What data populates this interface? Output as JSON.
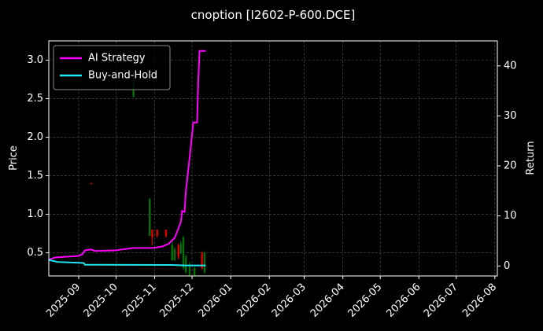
{
  "chart_data": {
    "type": "candlestick",
    "title": "cnoption [I2602-P-600.DCE]",
    "ylabel": "Price",
    "y2label": "Return",
    "xlim": [
      "2025-08-08",
      "2026-08-03"
    ],
    "xticks": [
      "2025-09",
      "2025-10",
      "2025-11",
      "2025-12",
      "2026-01",
      "2026-02",
      "2026-03",
      "2026-04",
      "2026-05",
      "2026-06",
      "2026-07",
      "2026-08"
    ],
    "ylim": [
      0.2,
      3.25
    ],
    "yticks": [
      0.5,
      {
        "value": 1,
        "label": "1.0"
      },
      1.5,
      {
        "value": 2,
        "label": "2.0"
      },
      2.5,
      {
        "value": 3,
        "label": "3.0"
      }
    ],
    "y2lim": [
      -2,
      45
    ],
    "y2ticks": [
      0,
      10,
      20,
      30,
      40
    ],
    "grid": true,
    "legend": "upper left",
    "up_color": "#008000",
    "down_color": "#ff0000",
    "candles": {
      "x": [
        "2025-09-11",
        "2025-10-15",
        "2025-10-28",
        "2025-10-30",
        "2025-11-03",
        "2025-11-10",
        "2025-11-15",
        "2025-11-17",
        "2025-11-20",
        "2025-11-22",
        "2025-11-24",
        "2025-11-26",
        "2025-11-29",
        "2025-12-03",
        "2025-12-09",
        "2025-12-11"
      ],
      "open": [
        1.4,
        2.52,
        0.72,
        0.8,
        0.8,
        0.8,
        0.4,
        0.4,
        0.6,
        0.5,
        0.3,
        0.25,
        0.2,
        0.2,
        0.5,
        0.25
      ],
      "high": [
        1.41,
        2.8,
        1.21,
        0.8,
        0.8,
        0.8,
        0.65,
        0.58,
        0.62,
        0.65,
        0.72,
        0.48,
        0.38,
        0.32,
        0.52,
        0.52
      ],
      "low": [
        1.39,
        2.52,
        0.72,
        0.6,
        0.7,
        0.7,
        0.4,
        0.4,
        0.42,
        0.48,
        0.28,
        0.23,
        0.2,
        0.2,
        0.28,
        0.23
      ],
      "close": [
        1.39,
        2.7,
        1.2,
        0.7,
        0.72,
        0.72,
        0.6,
        0.55,
        0.45,
        0.62,
        0.7,
        0.45,
        0.35,
        0.3,
        0.3,
        0.5
      ]
    },
    "series": [
      {
        "name": "AI Strategy",
        "color": "#ff00ff",
        "axis": "y2",
        "x": [
          "2025-08-08",
          "2025-08-13",
          "2025-09-01",
          "2025-09-04",
          "2025-09-06",
          "2025-09-11",
          "2025-09-14",
          "2025-09-30",
          "2025-10-15",
          "2025-10-31",
          "2025-11-07",
          "2025-11-12",
          "2025-11-17",
          "2025-11-20",
          "2025-11-22",
          "2025-11-23",
          "2025-11-25",
          "2025-11-26",
          "2025-11-29",
          "2025-12-02",
          "2025-12-05",
          "2025-12-06",
          "2025-12-07",
          "2025-12-12"
        ],
        "values": [
          1.25,
          1.7,
          2.0,
          2.35,
          3.1,
          3.3,
          3.0,
          3.1,
          3.6,
          3.6,
          3.9,
          4.4,
          5.6,
          7.5,
          8.8,
          11.0,
          10.8,
          14.9,
          21.6,
          28.7,
          28.7,
          37.3,
          43.0,
          43.0
        ]
      },
      {
        "name": "Buy-and-Hold",
        "color": "#22e6f0",
        "axis": "y2",
        "x": [
          "2025-08-08",
          "2025-08-15",
          "2025-09-05",
          "2025-09-06",
          "2025-11-15",
          "2025-11-25",
          "2025-12-12"
        ],
        "values": [
          1.2,
          0.8,
          0.6,
          0.25,
          0.2,
          0.1,
          0.1
        ]
      }
    ]
  }
}
